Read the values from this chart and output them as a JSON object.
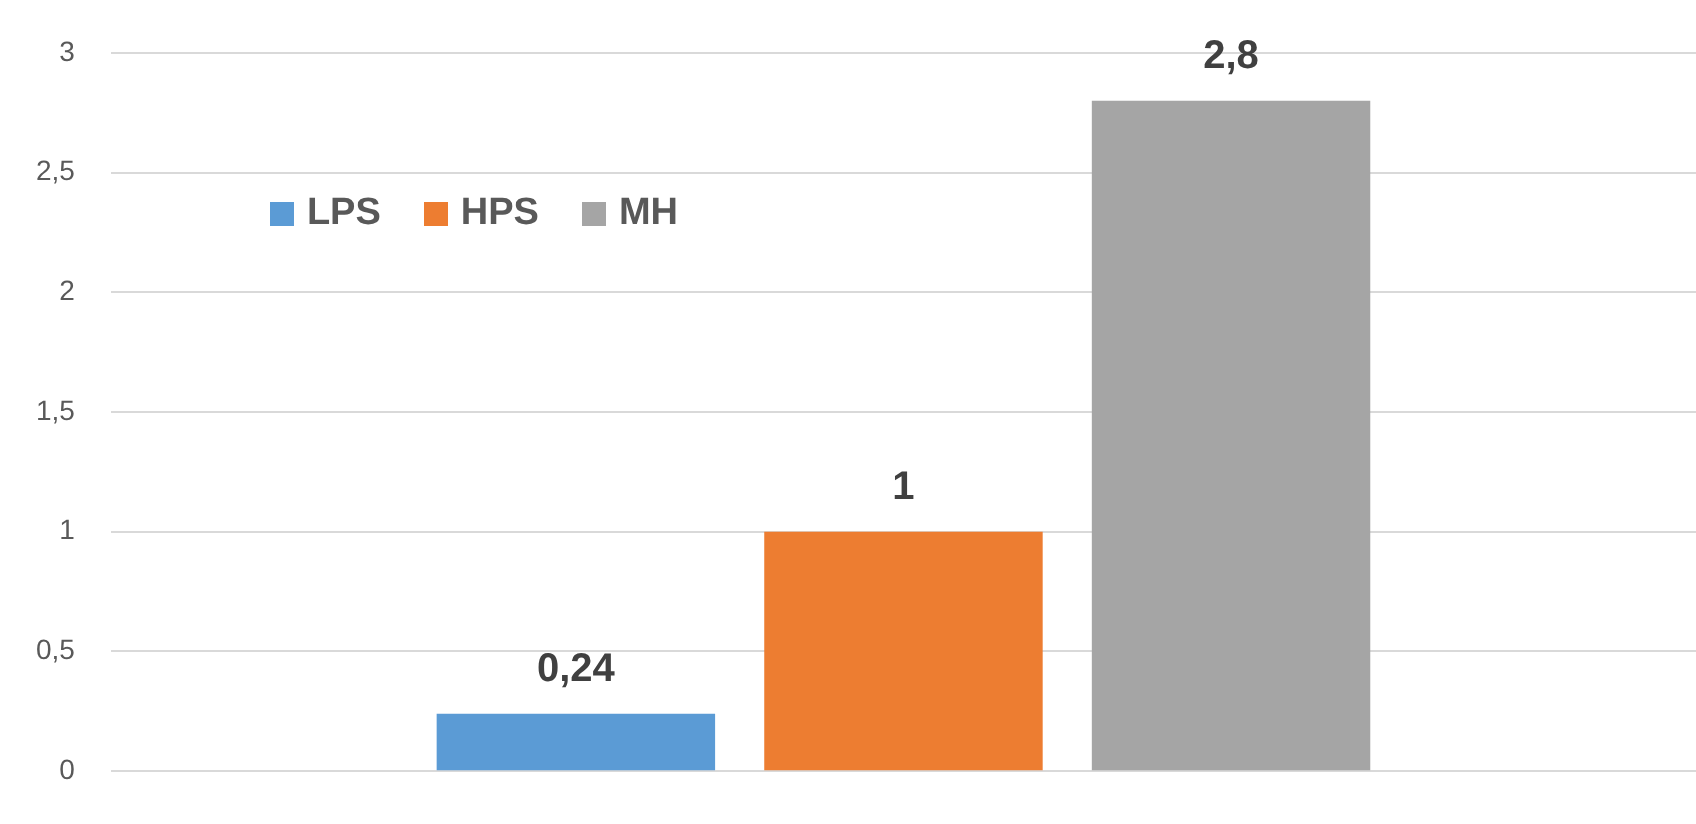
{
  "chart_data": {
    "type": "bar",
    "categories": [
      null
    ],
    "series": [
      {
        "name": "LPS",
        "color": "#5b9bd5",
        "values": [
          0.24
        ],
        "value_labels": [
          "0,24"
        ]
      },
      {
        "name": "HPS",
        "color": "#ed7d31",
        "values": [
          1
        ],
        "value_labels": [
          "1"
        ]
      },
      {
        "name": "MH",
        "color": "#a5a5a5",
        "values": [
          2.8
        ],
        "value_labels": [
          "2,8"
        ]
      }
    ],
    "ylim": [
      0,
      3
    ],
    "yticks": [
      0,
      {
        "value": 0.5,
        "label": "0,5"
      },
      1,
      {
        "value": 1.5,
        "label": "1,5"
      },
      2,
      {
        "value": 2.5,
        "label": "2,5"
      },
      3
    ],
    "grid": "y",
    "legend": "top left"
  }
}
